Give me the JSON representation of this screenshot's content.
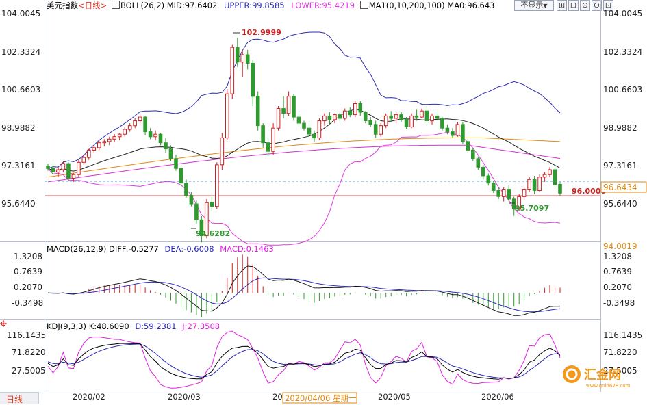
{
  "header": {
    "instrument": "美元指数",
    "period": "<日线>",
    "boll_label": "BOLL(26,2)",
    "boll_mid": "MID:97.6402",
    "boll_upper": "UPPER:99.8585",
    "boll_lower": "LOWER:95.4219",
    "ma_label": "MA1(0,10,200,100)",
    "ma_value": "MA0:96.643",
    "hide_button": "不显示",
    "hide_arrow": "▼",
    "tool_buttons": [
      "⊞",
      "⊟",
      "⊕",
      "⊖",
      "⊡"
    ]
  },
  "colors": {
    "up": "#d11c1c",
    "down": "#2f9a2f",
    "mid": "#222222",
    "upper": "#2c2cb0",
    "lower": "#e03ae0",
    "ma200": "#e08a12",
    "ma100": "#d030d0",
    "diff": "#1a1a1a",
    "dea": "#2a2ac0",
    "macd_up": "#d22020",
    "macd_down": "#2a9a2a",
    "k": "#000000",
    "d": "#2828b8",
    "j": "#e020e0"
  },
  "price_axis": {
    "ticks": [
      "104.0045",
      "102.3324",
      "100.6603",
      "98.9882",
      "97.3161",
      "95.6440"
    ],
    "current_label": "96.6434",
    "level_line_label": "96.0000",
    "sub_top_label": "94.0019",
    "high_annotation": "102.9999",
    "low_annotation": "94.6282",
    "recent_low_annotation": "95.7097"
  },
  "macd_panel": {
    "label": "MACD(26,12,9)",
    "diff": "DIFF:-0.5277",
    "dea": "DEA:-0.6008",
    "macd": "MACD:0.1463",
    "ticks": [
      "1.3208",
      "0.7639",
      "0.2070",
      "-0.3498"
    ]
  },
  "kdj_panel": {
    "label": "KDJ(9,3,3)",
    "k": "K:48.6090",
    "d": "D:59.2381",
    "j": "J:27.3508",
    "ticks": [
      "116.1435",
      "71.8220",
      "27.5005"
    ]
  },
  "time_axis": {
    "labels": [
      "2020/02",
      "2020/03",
      "20",
      "2020/05",
      "2020/06"
    ],
    "cursor_label": "2020/04/06 星期一"
  },
  "footer": {
    "tab_label": "日线"
  },
  "watermark": {
    "name": "汇金网",
    "url": "www.gold678.com"
  },
  "chart_data": {
    "type": "candlestick",
    "title": "美元指数 <日线>",
    "x": [
      "2020/02",
      "2020/03",
      "2020/04",
      "2020/05",
      "2020/06"
    ],
    "y_range": [
      95.0,
      104.0045
    ],
    "level_line": 96.0,
    "annotations": [
      {
        "label": "102.9999",
        "value": 102.9999
      },
      {
        "label": "94.6282",
        "value": 94.6282
      },
      {
        "label": "95.7097",
        "value": 95.7097
      }
    ],
    "candles": [
      [
        97.75,
        97.85,
        97.55,
        97.65
      ],
      [
        97.65,
        97.9,
        97.4,
        97.5
      ],
      [
        97.5,
        97.7,
        97.3,
        97.6
      ],
      [
        97.6,
        97.95,
        97.5,
        97.85
      ],
      [
        97.85,
        97.9,
        97.15,
        97.25
      ],
      [
        97.25,
        97.45,
        97.1,
        97.4
      ],
      [
        97.4,
        98.0,
        97.3,
        97.9
      ],
      [
        97.9,
        98.2,
        97.8,
        98.1
      ],
      [
        98.1,
        98.45,
        98.0,
        98.4
      ],
      [
        98.4,
        98.6,
        98.3,
        98.5
      ],
      [
        98.5,
        98.8,
        98.4,
        98.7
      ],
      [
        98.7,
        98.85,
        98.55,
        98.75
      ],
      [
        98.75,
        98.95,
        98.6,
        98.85
      ],
      [
        98.85,
        99.05,
        98.75,
        98.95
      ],
      [
        98.95,
        99.1,
        98.8,
        99.05
      ],
      [
        99.05,
        99.35,
        98.95,
        99.25
      ],
      [
        99.25,
        99.5,
        99.15,
        99.4
      ],
      [
        99.4,
        99.7,
        99.3,
        99.6
      ],
      [
        99.6,
        99.85,
        99.5,
        99.75
      ],
      [
        99.75,
        99.8,
        99.0,
        99.15
      ],
      [
        99.15,
        99.3,
        98.85,
        98.95
      ],
      [
        98.95,
        99.2,
        98.8,
        99.05
      ],
      [
        99.05,
        99.1,
        98.6,
        98.7
      ],
      [
        98.7,
        98.9,
        98.3,
        98.45
      ],
      [
        98.45,
        98.6,
        97.95,
        98.05
      ],
      [
        98.05,
        98.2,
        97.55,
        97.65
      ],
      [
        97.65,
        97.8,
        96.95,
        97.05
      ],
      [
        97.05,
        97.2,
        96.45,
        96.55
      ],
      [
        96.55,
        96.7,
        96.1,
        96.2
      ],
      [
        96.2,
        96.35,
        95.4,
        95.55
      ],
      [
        95.55,
        95.7,
        94.6282,
        94.9
      ],
      [
        94.9,
        96.4,
        94.8,
        96.25
      ],
      [
        96.25,
        96.5,
        95.9,
        96.1
      ],
      [
        96.1,
        97.9,
        96.0,
        97.8
      ],
      [
        97.8,
        99.1,
        97.6,
        98.9
      ],
      [
        98.9,
        100.9,
        98.8,
        100.7
      ],
      [
        100.7,
        102.7,
        100.5,
        102.6
      ],
      [
        102.6,
        102.9999,
        101.8,
        102.0
      ],
      [
        102.0,
        102.5,
        101.4,
        102.3
      ],
      [
        102.3,
        102.5,
        101.7,
        101.95
      ],
      [
        101.95,
        102.1,
        100.2,
        100.6
      ],
      [
        100.6,
        100.8,
        99.2,
        99.4
      ],
      [
        99.4,
        99.5,
        98.5,
        98.7
      ],
      [
        98.7,
        98.9,
        98.15,
        98.35
      ],
      [
        98.35,
        99.5,
        98.2,
        99.3
      ],
      [
        99.3,
        100.2,
        99.2,
        100.1
      ],
      [
        100.1,
        100.6,
        99.7,
        99.9
      ],
      [
        99.9,
        100.8,
        99.8,
        100.6
      ],
      [
        100.6,
        100.7,
        99.6,
        99.75
      ],
      [
        99.75,
        99.9,
        99.35,
        99.5
      ],
      [
        99.5,
        99.6,
        99.2,
        99.3
      ],
      [
        99.3,
        99.5,
        98.9,
        99.05
      ],
      [
        99.05,
        99.2,
        98.75,
        98.9
      ],
      [
        98.9,
        99.7,
        98.8,
        99.6
      ],
      [
        99.6,
        99.9,
        99.4,
        99.8
      ],
      [
        99.8,
        99.95,
        99.45,
        99.65
      ],
      [
        99.65,
        99.9,
        99.5,
        99.85
      ],
      [
        99.85,
        99.95,
        99.55,
        99.7
      ],
      [
        99.7,
        100.1,
        99.6,
        100.0
      ],
      [
        100.0,
        100.15,
        99.75,
        99.85
      ],
      [
        99.85,
        100.4,
        99.75,
        100.3
      ],
      [
        100.3,
        100.4,
        99.8,
        99.95
      ],
      [
        99.95,
        100.0,
        99.5,
        99.6
      ],
      [
        99.6,
        99.75,
        99.35,
        99.45
      ],
      [
        99.45,
        99.6,
        98.9,
        99.05
      ],
      [
        99.05,
        99.5,
        98.95,
        99.4
      ],
      [
        99.4,
        99.9,
        99.3,
        99.8
      ],
      [
        99.8,
        100.0,
        99.55,
        99.7
      ],
      [
        99.7,
        99.95,
        99.5,
        99.85
      ],
      [
        99.85,
        99.95,
        99.55,
        99.65
      ],
      [
        99.65,
        99.75,
        99.25,
        99.35
      ],
      [
        99.35,
        99.9,
        99.3,
        99.8
      ],
      [
        99.8,
        100.05,
        99.6,
        99.75
      ],
      [
        99.75,
        100.1,
        99.7,
        100.0
      ],
      [
        100.0,
        100.2,
        99.55,
        99.6
      ],
      [
        99.6,
        99.9,
        99.45,
        99.8
      ],
      [
        99.8,
        100.0,
        99.6,
        99.7
      ],
      [
        99.7,
        99.75,
        99.2,
        99.3
      ],
      [
        99.3,
        99.45,
        99.05,
        99.15
      ],
      [
        99.15,
        99.3,
        98.9,
        99.0
      ],
      [
        99.0,
        99.55,
        98.95,
        99.45
      ],
      [
        99.45,
        99.55,
        98.65,
        98.75
      ],
      [
        98.75,
        98.85,
        98.3,
        98.4
      ],
      [
        98.4,
        98.5,
        97.95,
        98.05
      ],
      [
        98.05,
        98.15,
        97.6,
        97.7
      ],
      [
        97.7,
        97.8,
        97.2,
        97.35
      ],
      [
        97.35,
        97.45,
        96.95,
        97.05
      ],
      [
        97.05,
        97.15,
        96.65,
        96.75
      ],
      [
        96.75,
        96.9,
        96.4,
        96.5
      ],
      [
        96.5,
        96.9,
        96.3,
        96.8
      ],
      [
        96.8,
        96.95,
        96.3,
        96.4
      ],
      [
        96.4,
        96.5,
        95.7097,
        96.0
      ],
      [
        96.0,
        96.6,
        95.9,
        96.5
      ],
      [
        96.5,
        96.9,
        96.35,
        96.8
      ],
      [
        96.8,
        97.3,
        96.7,
        97.2
      ],
      [
        97.2,
        97.35,
        96.6,
        96.75
      ],
      [
        96.75,
        97.4,
        96.7,
        97.3
      ],
      [
        97.3,
        97.5,
        97.1,
        97.4
      ],
      [
        97.4,
        97.7,
        97.3,
        97.6
      ],
      [
        97.6,
        97.75,
        96.9,
        97.0
      ],
      [
        97.0,
        97.1,
        96.55,
        96.643
      ]
    ],
    "series": [
      {
        "name": "MID",
        "last": 97.6402
      },
      {
        "name": "UPPER",
        "last": 99.8585
      },
      {
        "name": "LOWER",
        "last": 95.4219
      },
      {
        "name": "MA0",
        "last": 96.643
      }
    ]
  }
}
